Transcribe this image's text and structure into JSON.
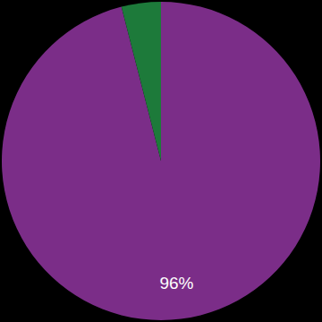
{
  "chart_data": {
    "type": "pie",
    "values": [
      96,
      4
    ],
    "value_labels": [
      "96%",
      null
    ],
    "colors": [
      "#7b2d88",
      "#1d7a3a"
    ],
    "data_labels": true
  }
}
